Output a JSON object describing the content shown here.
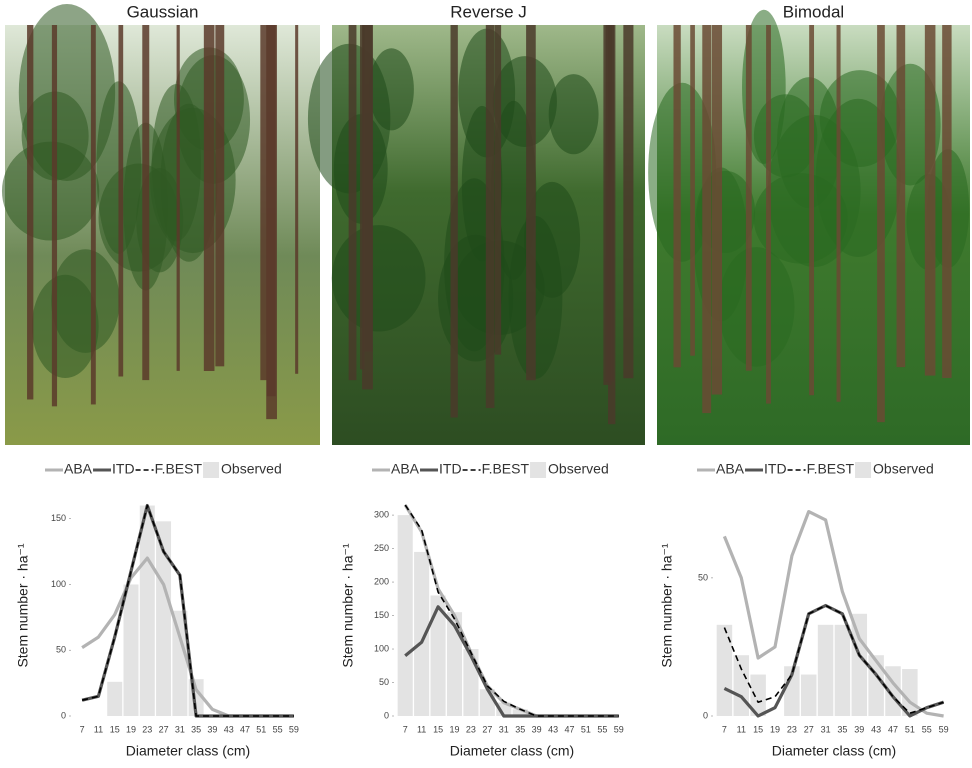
{
  "chart_data": [
    {
      "type": "line",
      "title": "Gaussian",
      "xlabel": "Diameter class (cm)",
      "ylabel": "Stem number · ha⁻¹",
      "categories": [
        "7",
        "11",
        "15",
        "19",
        "23",
        "27",
        "31",
        "35",
        "39",
        "43",
        "47",
        "51",
        "55",
        "59"
      ],
      "ylim": [
        0,
        168
      ],
      "yticks": [
        0,
        50,
        100,
        150
      ],
      "series": [
        {
          "name": "ABA",
          "color": "#b3b3b3",
          "values": [
            52,
            60,
            77,
            105,
            120,
            100,
            60,
            20,
            5,
            0,
            0,
            0,
            0,
            0
          ]
        },
        {
          "name": "ITD",
          "color": "#555555",
          "values": [
            12,
            15,
            60,
            110,
            160,
            125,
            107,
            0,
            0,
            0,
            0,
            0,
            0,
            0
          ]
        },
        {
          "name": "F.BEST",
          "color": "#000000",
          "dash": true,
          "values": [
            12,
            15,
            60,
            110,
            160,
            125,
            107,
            0,
            0,
            0,
            0,
            0,
            0,
            0
          ]
        },
        {
          "name": "Observed",
          "color": "#e3e3e3",
          "type": "bar",
          "values": [
            0,
            0,
            26,
            100,
            160,
            148,
            80,
            28,
            0,
            0,
            0,
            0,
            0,
            0
          ]
        }
      ]
    },
    {
      "type": "line",
      "title": "Reverse J",
      "xlabel": "Diameter class (cm)",
      "ylabel": "Stem number · ha⁻¹",
      "categories": [
        "7",
        "11",
        "15",
        "19",
        "23",
        "27",
        "31",
        "35",
        "39",
        "43",
        "47",
        "51",
        "55",
        "59"
      ],
      "ylim": [
        0,
        330
      ],
      "yticks": [
        0,
        50,
        100,
        150,
        200,
        250,
        300
      ],
      "series": [
        {
          "name": "ABA",
          "color": "#b3b3b3",
          "values": [
            315,
            275,
            190,
            150,
            95,
            45,
            20,
            10,
            0,
            0,
            0,
            0,
            0,
            0
          ]
        },
        {
          "name": "ITD",
          "color": "#555555",
          "values": [
            90,
            110,
            163,
            135,
            90,
            40,
            0,
            0,
            0,
            0,
            0,
            0,
            0,
            0
          ]
        },
        {
          "name": "F.BEST",
          "color": "#000000",
          "dash": true,
          "values": [
            315,
            278,
            185,
            145,
            95,
            45,
            22,
            10,
            0,
            0,
            0,
            0,
            0,
            0
          ]
        },
        {
          "name": "Observed",
          "color": "#e3e3e3",
          "type": "bar",
          "values": [
            300,
            245,
            180,
            155,
            100,
            40,
            20,
            10,
            0,
            0,
            0,
            0,
            0,
            0
          ]
        }
      ]
    },
    {
      "type": "line",
      "title": "Bimodal",
      "xlabel": "Diameter class (cm)",
      "ylabel": "Stem number · ha⁻¹",
      "categories": [
        "7",
        "11",
        "15",
        "19",
        "23",
        "27",
        "31",
        "35",
        "39",
        "43",
        "47",
        "51",
        "55",
        "59"
      ],
      "ylim": [
        0,
        80
      ],
      "yticks": [
        0,
        50
      ],
      "series": [
        {
          "name": "ABA",
          "color": "#b3b3b3",
          "values": [
            65,
            50,
            21,
            25,
            58,
            74,
            71,
            45,
            28,
            20,
            12,
            5,
            1,
            0
          ]
        },
        {
          "name": "ITD",
          "color": "#555555",
          "values": [
            10,
            7,
            0,
            3,
            15,
            37,
            40,
            37,
            22,
            15,
            7,
            0,
            3,
            5
          ]
        },
        {
          "name": "F.BEST",
          "color": "#000000",
          "dash": true,
          "values": [
            32,
            17,
            5,
            7,
            15,
            37,
            40,
            37,
            22,
            15,
            7,
            1,
            3,
            5
          ]
        },
        {
          "name": "Observed",
          "color": "#e3e3e3",
          "type": "bar",
          "values": [
            33,
            22,
            15,
            0,
            18,
            15,
            33,
            33,
            37,
            22,
            18,
            17,
            0,
            0
          ]
        }
      ]
    }
  ]
}
